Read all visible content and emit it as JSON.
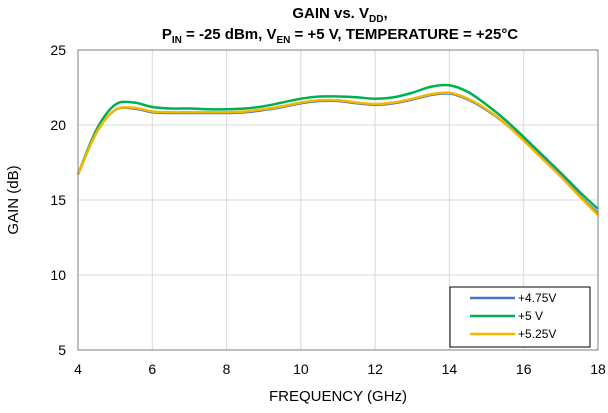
{
  "chart_data": {
    "type": "line",
    "title_line1": {
      "main": "GAIN vs. V",
      "sub": "DD",
      "tail": ","
    },
    "title_line2": [
      {
        "text": "P",
        "sub": false
      },
      {
        "text": "IN",
        "sub": true
      },
      {
        "text": " = -25 dBm, V",
        "sub": false
      },
      {
        "text": "EN",
        "sub": true
      },
      {
        "text": " = +5 V, TEMPERATURE = +25°C",
        "sub": false
      }
    ],
    "xlabel": "FREQUENCY (GHz)",
    "ylabel": "GAIN (dB)",
    "xlim": [
      4,
      18
    ],
    "ylim": [
      5,
      25
    ],
    "xticks": [
      "4",
      "6",
      "8",
      "10",
      "12",
      "14",
      "16",
      "18"
    ],
    "yticks": [
      "5",
      "10",
      "15",
      "20",
      "25"
    ],
    "grid": true,
    "legend_position": "bottom-right",
    "x": [
      4,
      4.5,
      5,
      5.5,
      6,
      6.5,
      7,
      7.5,
      8,
      8.5,
      9,
      9.5,
      10,
      10.5,
      11,
      11.5,
      12,
      12.5,
      13,
      13.5,
      14,
      14.5,
      15,
      15.5,
      16,
      16.5,
      17,
      17.5,
      18
    ],
    "series": [
      {
        "name": "+4.75V",
        "color": "#4472C4",
        "values": [
          16.7,
          19.5,
          21.0,
          21.1,
          20.85,
          20.8,
          20.8,
          20.8,
          20.8,
          20.85,
          21.0,
          21.2,
          21.45,
          21.6,
          21.6,
          21.45,
          21.35,
          21.45,
          21.7,
          22.0,
          22.1,
          21.7,
          21.0,
          20.1,
          19.0,
          17.8,
          16.6,
          15.3,
          14.1
        ]
      },
      {
        "name": "+5 V",
        "color": "#00B050",
        "values": [
          16.7,
          19.7,
          21.35,
          21.5,
          21.2,
          21.1,
          21.1,
          21.05,
          21.05,
          21.1,
          21.25,
          21.5,
          21.75,
          21.9,
          21.9,
          21.85,
          21.75,
          21.85,
          22.15,
          22.55,
          22.65,
          22.2,
          21.35,
          20.35,
          19.2,
          18.0,
          16.8,
          15.55,
          14.4
        ]
      },
      {
        "name": "+5.25V",
        "color": "#F5B800",
        "values": [
          16.7,
          19.5,
          21.0,
          21.15,
          20.9,
          20.85,
          20.85,
          20.85,
          20.85,
          20.9,
          21.05,
          21.25,
          21.5,
          21.65,
          21.65,
          21.5,
          21.4,
          21.5,
          21.75,
          22.05,
          22.15,
          21.75,
          21.05,
          20.1,
          18.95,
          17.75,
          16.55,
          15.25,
          14.0
        ]
      }
    ]
  }
}
